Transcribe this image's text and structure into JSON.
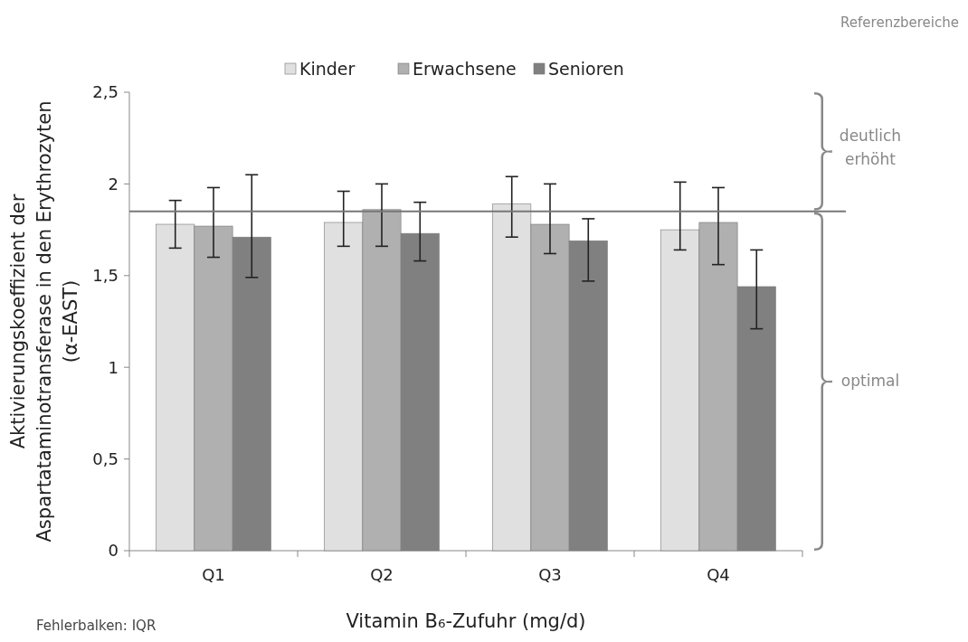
{
  "chart_data": {
    "type": "bar",
    "xlabel": "Vitamin B₆-Zufuhr (mg/d)",
    "ylabel": "Aktivierungskoeffizient  der\nAspartataminotransferase  in den Erythrozyten\n(α-EAST)",
    "categories": [
      "Q1",
      "Q2",
      "Q3",
      "Q4"
    ],
    "series": [
      {
        "name": "Kinder",
        "color": "#e0e0e0",
        "values": [
          1.78,
          1.79,
          1.89,
          1.75
        ],
        "errors": [
          [
            1.65,
            1.91
          ],
          [
            1.66,
            1.96
          ],
          [
            1.71,
            2.04
          ],
          [
            1.64,
            2.01
          ]
        ]
      },
      {
        "name": "Erwachsene",
        "color": "#b0b0b0",
        "values": [
          1.77,
          1.86,
          1.78,
          1.79
        ],
        "errors": [
          [
            1.6,
            1.98
          ],
          [
            1.66,
            2.0
          ],
          [
            1.62,
            2.0
          ],
          [
            1.56,
            1.98
          ]
        ]
      },
      {
        "name": "Senioren",
        "color": "#808080",
        "values": [
          1.71,
          1.73,
          1.69,
          1.44
        ],
        "errors": [
          [
            1.49,
            2.05
          ],
          [
            1.58,
            1.9
          ],
          [
            1.47,
            1.81
          ],
          [
            1.21,
            1.64
          ]
        ]
      }
    ],
    "ylim": [
      0,
      2.5
    ],
    "yticks": [
      0,
      {
        "value": 0.5,
        "label": "0,5"
      },
      1,
      {
        "value": 1.5,
        "label": "1,5"
      },
      2,
      {
        "value": 2.5,
        "label": "2,5"
      }
    ],
    "ref_lines": [
      {
        "axis": "y",
        "value": 1.85
      }
    ],
    "legend": "top",
    "grid": false,
    "annotations": [
      "Referenzbereiche",
      "Fehlerbalken: IQR",
      "deutlich erhöht",
      "optimal"
    ]
  }
}
